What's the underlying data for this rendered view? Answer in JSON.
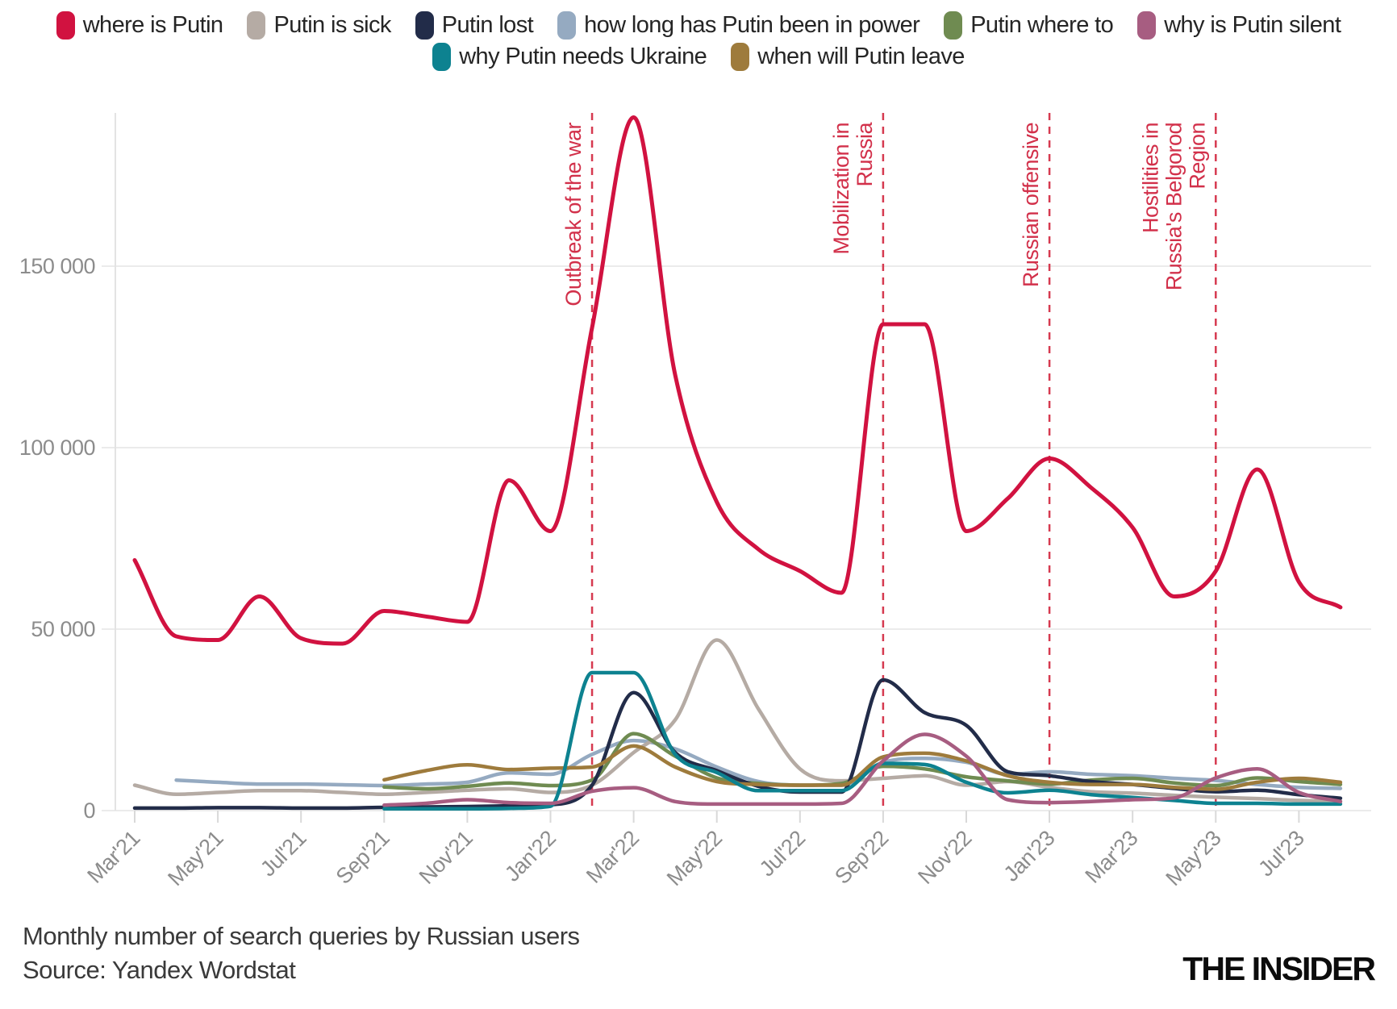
{
  "caption": {
    "line1": "Monthly number of search queries by Russian users",
    "line2": "Source: Yandex Wordstat"
  },
  "logo_text": "THE INSIDER",
  "chart_data": {
    "type": "line",
    "title": "Monthly number of search queries by Russian users",
    "source": "Yandex Wordstat",
    "xlabel": "",
    "ylabel": "",
    "ylim": [
      0,
      192000
    ],
    "y_ticks": [
      {
        "value": 0,
        "label": "0"
      },
      {
        "value": 50000,
        "label": "50 000"
      },
      {
        "value": 100000,
        "label": "100 000"
      },
      {
        "value": 150000,
        "label": "150 000"
      }
    ],
    "tick_step": 2,
    "grid": true,
    "legend_position": "top",
    "categories": [
      "Mar'21",
      "Apr'21",
      "May'21",
      "Jun'21",
      "Jul'21",
      "Aug'21",
      "Sep'21",
      "Oct'21",
      "Nov'21",
      "Dec'21",
      "Jan'22",
      "Feb'22",
      "Mar'22",
      "Apr'22",
      "May'22",
      "Jun'22",
      "Jul'22",
      "Aug'22",
      "Sep'22",
      "Oct'22",
      "Nov'22",
      "Dec'22",
      "Jan'23",
      "Feb'23",
      "Mar'23",
      "Apr'23",
      "May'23",
      "Jun'23",
      "Jul'23",
      "Aug'23"
    ],
    "series": [
      {
        "name": "where is Putin",
        "slug": "where-is-putin",
        "color": "#d11240",
        "line_width": 5,
        "values": [
          69000,
          48000,
          47000,
          59000,
          47500,
          46000,
          55000,
          53500,
          52000,
          91000,
          77000,
          133000,
          191000,
          120000,
          85000,
          72000,
          66000,
          60000,
          134000,
          134000,
          77000,
          86000,
          97000,
          89000,
          78000,
          59000,
          66000,
          94000,
          63000,
          56000
        ]
      },
      {
        "name": "Putin is sick",
        "slug": "putin-is-sick",
        "color": "#b5aba4",
        "line_width": 4.5,
        "values": [
          7000,
          4500,
          5000,
          5500,
          5500,
          5000,
          4500,
          5000,
          5600,
          6000,
          5000,
          7000,
          16000,
          25000,
          47000,
          28000,
          11500,
          8200,
          8900,
          9600,
          7000,
          8000,
          6400,
          5200,
          4800,
          4200,
          3700,
          3300,
          2800,
          2600
        ]
      },
      {
        "name": "Putin lost",
        "slug": "putin-lost",
        "color": "#222c49",
        "line_width": 4.5,
        "values": [
          700,
          700,
          800,
          800,
          700,
          700,
          900,
          1000,
          1100,
          1300,
          1600,
          7000,
          32500,
          16000,
          11000,
          6700,
          5100,
          5100,
          36000,
          27000,
          23500,
          10700,
          9600,
          8000,
          7200,
          6100,
          5200,
          5600,
          4400,
          3400
        ]
      },
      {
        "name": "how long has Putin been in power",
        "slug": "how-long-has-putin-been-in-power",
        "color": "#95aac1",
        "line_width": 4.5,
        "values": [
          null,
          8400,
          7800,
          7300,
          7300,
          7100,
          6900,
          7300,
          7800,
          10400,
          10000,
          15500,
          19300,
          17000,
          12000,
          8000,
          7000,
          7000,
          13300,
          14400,
          13300,
          10000,
          10700,
          10000,
          9600,
          8900,
          8300,
          7200,
          6400,
          6100
        ]
      },
      {
        "name": "Putin where to",
        "slug": "putin-where-to",
        "color": "#6f8b51",
        "line_width": 4.5,
        "values": [
          null,
          null,
          null,
          null,
          null,
          null,
          6500,
          6000,
          6700,
          7600,
          6900,
          8400,
          21200,
          15000,
          9000,
          7500,
          7000,
          7500,
          12200,
          11500,
          9300,
          8200,
          7300,
          8400,
          8900,
          7600,
          6900,
          9000,
          8000,
          7200
        ]
      },
      {
        "name": "why is Putin silent",
        "slug": "why-is-putin-silent",
        "color": "#a75d81",
        "line_width": 4.5,
        "values": [
          null,
          null,
          null,
          null,
          null,
          null,
          1500,
          2000,
          3000,
          2200,
          2000,
          5300,
          6300,
          2500,
          1800,
          1800,
          1800,
          2000,
          13700,
          21000,
          15000,
          3000,
          2200,
          2500,
          3000,
          3500,
          9000,
          11500,
          5000,
          2500
        ]
      },
      {
        "name": "why Putin needs Ukraine",
        "slug": "why-putin-needs-ukraine",
        "color": "#0d8290",
        "line_width": 4.5,
        "values": [
          null,
          null,
          null,
          null,
          null,
          null,
          500,
          500,
          500,
          600,
          1200,
          38000,
          38000,
          15500,
          10500,
          5500,
          5500,
          5500,
          13000,
          12700,
          7800,
          4900,
          5600,
          4400,
          3600,
          2800,
          2000,
          2000,
          1800,
          1800
        ]
      },
      {
        "name": "when will Putin leave",
        "slug": "when-will-putin-leave",
        "color": "#9e7b3c",
        "line_width": 4.5,
        "values": [
          null,
          null,
          null,
          null,
          null,
          null,
          8500,
          11000,
          12600,
          11300,
          11700,
          12000,
          17800,
          12000,
          8000,
          7200,
          7000,
          7000,
          14800,
          15800,
          13700,
          9600,
          7800,
          7200,
          7200,
          6400,
          5900,
          7800,
          8900,
          7800
        ]
      }
    ],
    "events": [
      {
        "lines": [
          "Outbreak of the war"
        ],
        "month_index": 11,
        "month": "Feb'22"
      },
      {
        "lines": [
          "Mobilization in",
          "Russia"
        ],
        "month_index": 18,
        "month": "Sep'22"
      },
      {
        "lines": [
          "Russian offensive"
        ],
        "month_index": 22,
        "month": "Jan'23"
      },
      {
        "lines": [
          "Hostilities in",
          "Russia's Belgorod",
          "Region"
        ],
        "month_index": 26,
        "month": "May'23"
      }
    ],
    "colors": {
      "grid": "#ebebeb",
      "axis_line": "#e3e3e3",
      "tick": "#d9d9d9",
      "axis_text": "#8c8c8c",
      "event_line": "#d63a50",
      "event_text": "#d2304a"
    }
  },
  "legend": {
    "rows": [
      [
        0,
        1,
        2,
        3,
        4,
        5
      ],
      [
        6,
        7
      ]
    ]
  }
}
